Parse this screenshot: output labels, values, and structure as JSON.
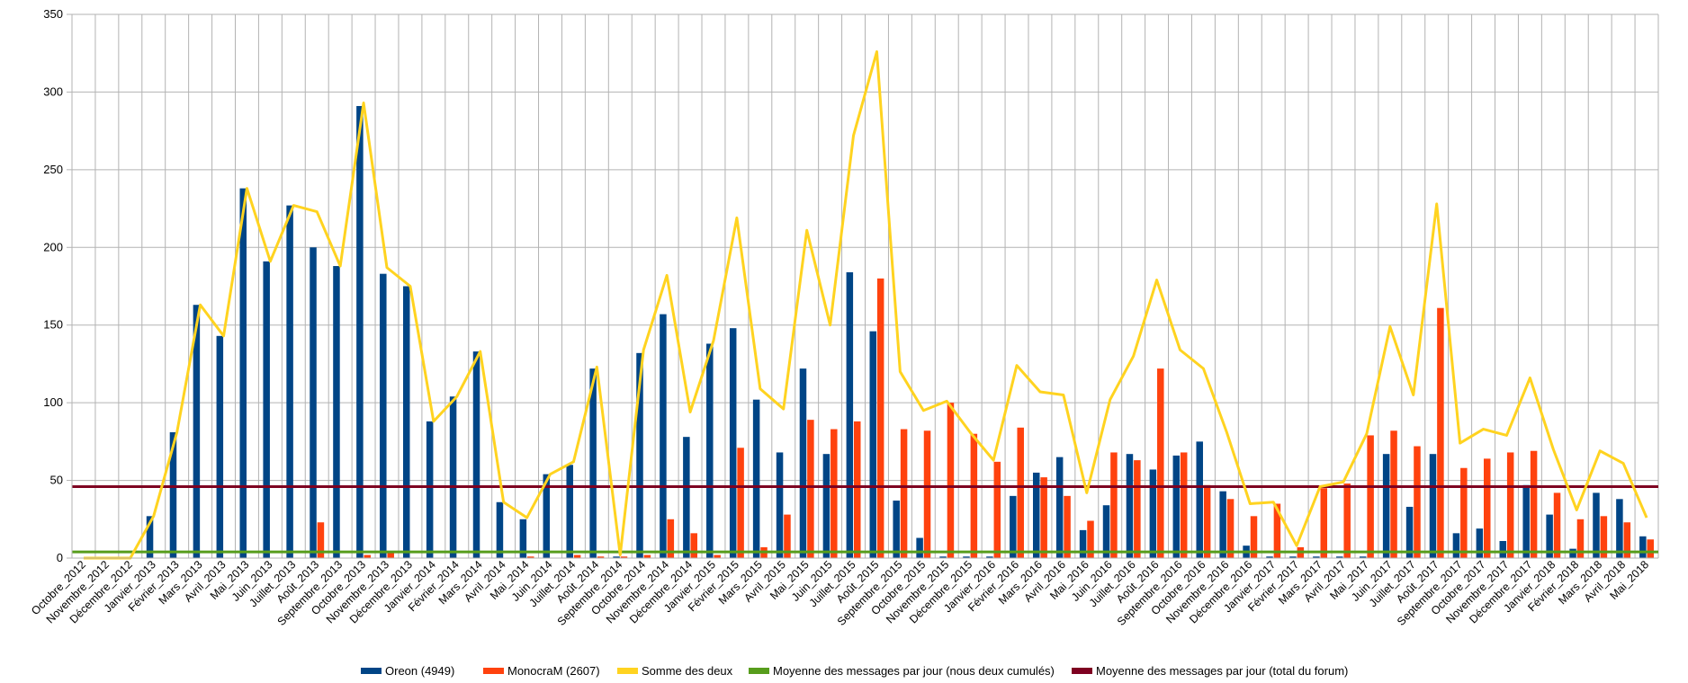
{
  "chart_data": {
    "type": "bar",
    "title": "",
    "xlabel": "",
    "ylabel": "",
    "ylim": [
      0,
      350
    ],
    "yticks": [
      0,
      50,
      100,
      150,
      200,
      250,
      300,
      350
    ],
    "grid": true,
    "legend": "bottom",
    "categories": [
      "Octobre_2012",
      "Novembre_2012",
      "Décembre_2012",
      "Janvier_2013",
      "Février_2013",
      "Mars_2013",
      "Avril_2013",
      "Mai_2013",
      "Juin_2013",
      "Juillet_2013",
      "Août_2013",
      "Septembre_2013",
      "Octobre_2013",
      "Novembre_2013",
      "Décembre_2013",
      "Janvier_2014",
      "Février_2014",
      "Mars_2014",
      "Avril_2014",
      "Mai_2014",
      "Juin_2014",
      "Juillet_2014",
      "Août_2014",
      "Septembre_2014",
      "Octobre_2014",
      "Novembre_2014",
      "Décembre_2014",
      "Janvier_2015",
      "Février_2015",
      "Mars_2015",
      "Avril_2015",
      "Mai_2015",
      "Juin_2015",
      "Juillet_2015",
      "Août_2015",
      "Septembre_2015",
      "Octobre_2015",
      "Novembre_2015",
      "Décembre_2015",
      "Janvier_2016",
      "Février_2016",
      "Mars_2016",
      "Avril_2016",
      "Mai_2016",
      "Juin_2016",
      "Juillet_2016",
      "Août_2016",
      "Septembre_2016",
      "Octobre_2016",
      "Novembre_2016",
      "Décembre_2016",
      "Janvier_2017",
      "Février_2017",
      "Mars_2017",
      "Avril_2017",
      "Mai_2017",
      "Juin_2017",
      "Juillet_2017",
      "Août_2017",
      "Septembre_2017",
      "Octobre_2017",
      "Novembre_2017",
      "Décembre_2017",
      "Janvier_2018",
      "Février_2018",
      "Mars_2018",
      "Avril_2018",
      "Mai_2018"
    ],
    "series": [
      {
        "name": "Oreon (4949)",
        "kind": "bar",
        "color": "#004586",
        "values": [
          0,
          0,
          0,
          27,
          81,
          163,
          143,
          238,
          191,
          227,
          200,
          188,
          291,
          183,
          175,
          88,
          104,
          133,
          36,
          25,
          54,
          60,
          122,
          1,
          132,
          157,
          78,
          138,
          148,
          102,
          68,
          122,
          67,
          184,
          146,
          37,
          13,
          1,
          1,
          1,
          40,
          55,
          65,
          18,
          34,
          67,
          57,
          66,
          75,
          43,
          8,
          1,
          1,
          1,
          1,
          1,
          67,
          33,
          67,
          16,
          19,
          11,
          47,
          28,
          6,
          42,
          38,
          14
        ]
      },
      {
        "name": "MonocraM (2607)",
        "kind": "bar",
        "color": "#ff420e",
        "values": [
          0,
          0,
          0,
          0,
          0,
          0,
          0,
          0,
          0,
          0,
          23,
          0,
          2,
          4,
          0,
          0,
          0,
          0,
          0,
          1,
          0,
          2,
          1,
          1,
          2,
          25,
          16,
          2,
          71,
          7,
          28,
          89,
          83,
          88,
          180,
          83,
          82,
          100,
          80,
          62,
          84,
          52,
          40,
          24,
          68,
          63,
          122,
          68,
          47,
          38,
          27,
          35,
          7,
          45,
          48,
          79,
          82,
          72,
          161,
          58,
          64,
          68,
          69,
          42,
          25,
          27,
          23,
          12
        ]
      },
      {
        "name": "Somme des deux",
        "kind": "line",
        "color": "#ffd320",
        "values": [
          0,
          0,
          0,
          27,
          81,
          163,
          143,
          238,
          191,
          227,
          223,
          188,
          293,
          187,
          175,
          88,
          104,
          133,
          36,
          26,
          54,
          62,
          123,
          2,
          134,
          182,
          94,
          140,
          219,
          109,
          96,
          211,
          150,
          272,
          326,
          120,
          95,
          101,
          81,
          63,
          124,
          107,
          105,
          42,
          102,
          130,
          179,
          134,
          122,
          81,
          35,
          36,
          8,
          46,
          49,
          80,
          149,
          105,
          228,
          74,
          83,
          79,
          116,
          70,
          31,
          69,
          61,
          26
        ]
      },
      {
        "name": "Moyenne des messages par jour (nous deux cumulés)",
        "kind": "hline",
        "color": "#579d1c",
        "value": 4
      },
      {
        "name": "Moyenne des messages par jour (total du forum)",
        "kind": "hline",
        "color": "#7e0021",
        "value": 46
      }
    ]
  }
}
